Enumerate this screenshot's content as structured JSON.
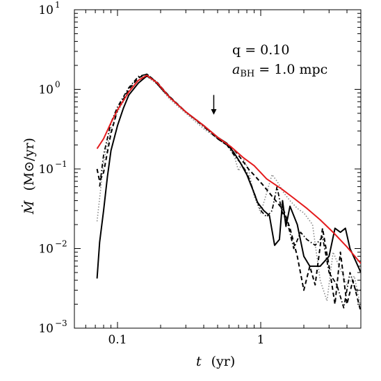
{
  "chart_data": {
    "type": "line",
    "title": "",
    "xlabel": {
      "symbol": "t",
      "unit": "(yr)"
    },
    "ylabel": {
      "symbol": "Ṁ",
      "unit": "(M⊙/yr)"
    },
    "xscale": "log",
    "yscale": "log",
    "xlim": [
      0.05,
      5.0
    ],
    "ylim": [
      0.001,
      10
    ],
    "x_tick_labels": [
      {
        "value": 0.1,
        "label": "0.1"
      },
      {
        "value": 1,
        "label": "1"
      }
    ],
    "y_tick_labels": [
      {
        "value": 0.001,
        "base": "10",
        "exp": "−3"
      },
      {
        "value": 0.01,
        "base": "10",
        "exp": "−2"
      },
      {
        "value": 0.1,
        "base": "10",
        "exp": "−1"
      },
      {
        "value": 1,
        "base": "10",
        "exp": "0"
      },
      {
        "value": 10,
        "base": "10",
        "exp": "1"
      }
    ],
    "annotations": {
      "q": "q = 0.10",
      "a_bh": "a",
      "a_bh_sub": "BH",
      "a_bh_value": " = 1.0 mpc"
    },
    "arrow_marker": {
      "x": 0.47,
      "y_top": 0.85,
      "y_bottom": 0.48
    },
    "series": [
      {
        "style": "red-solid",
        "color": "#e41a1c",
        "x": [
          0.072,
          0.08,
          0.09,
          0.1,
          0.12,
          0.14,
          0.16,
          0.19,
          0.23,
          0.3,
          0.4,
          0.5,
          0.62,
          0.75,
          0.9,
          1.1,
          1.4,
          1.7,
          2.1,
          2.6,
          3.2,
          4.0,
          5.0
        ],
        "y": [
          0.18,
          0.24,
          0.38,
          0.55,
          0.93,
          1.3,
          1.5,
          1.2,
          0.8,
          0.52,
          0.35,
          0.25,
          0.19,
          0.14,
          0.11,
          0.075,
          0.056,
          0.043,
          0.032,
          0.023,
          0.016,
          0.0105,
          0.0065
        ]
      },
      {
        "style": "black-solid",
        "color": "#000000",
        "x": [
          0.072,
          0.075,
          0.08,
          0.085,
          0.09,
          0.1,
          0.11,
          0.12,
          0.14,
          0.16,
          0.18,
          0.21,
          0.25,
          0.3,
          0.4,
          0.5,
          0.58,
          0.65,
          0.72,
          0.8,
          0.88,
          0.95,
          1.05,
          1.15,
          1.25,
          1.35,
          1.42,
          1.5,
          1.6,
          1.8,
          2.0,
          2.2,
          2.6,
          3.0,
          3.3,
          3.6,
          3.9,
          4.2,
          4.6,
          5.0
        ],
        "y": [
          0.0042,
          0.012,
          0.03,
          0.08,
          0.17,
          0.35,
          0.58,
          0.85,
          1.2,
          1.47,
          1.3,
          0.95,
          0.7,
          0.52,
          0.35,
          0.25,
          0.21,
          0.16,
          0.12,
          0.085,
          0.055,
          0.038,
          0.03,
          0.026,
          0.011,
          0.013,
          0.04,
          0.019,
          0.034,
          0.02,
          0.008,
          0.006,
          0.006,
          0.008,
          0.018,
          0.016,
          0.018,
          0.01,
          0.007,
          0.005
        ]
      },
      {
        "style": "black-dashed",
        "color": "#000000",
        "x": [
          0.072,
          0.075,
          0.08,
          0.09,
          0.1,
          0.12,
          0.14,
          0.16,
          0.19,
          0.23,
          0.3,
          0.4,
          0.5,
          0.58,
          0.66,
          0.74,
          0.82,
          0.92,
          1.02,
          1.15,
          1.3,
          1.45,
          1.6,
          1.8,
          2.0,
          2.2,
          2.4,
          2.7,
          3.0,
          3.3,
          3.6,
          4.0,
          4.4,
          5.0
        ],
        "y": [
          0.1,
          0.07,
          0.09,
          0.28,
          0.55,
          1.0,
          1.4,
          1.55,
          1.2,
          0.82,
          0.52,
          0.35,
          0.24,
          0.2,
          0.17,
          0.13,
          0.1,
          0.08,
          0.065,
          0.05,
          0.038,
          0.03,
          0.018,
          0.008,
          0.003,
          0.006,
          0.0035,
          0.018,
          0.006,
          0.002,
          0.009,
          0.002,
          0.004,
          0.0016
        ]
      },
      {
        "style": "black-dotted",
        "color": "#888888",
        "x": [
          0.072,
          0.08,
          0.09,
          0.1,
          0.12,
          0.14,
          0.16,
          0.19,
          0.23,
          0.3,
          0.4,
          0.5,
          0.58,
          0.65,
          0.7,
          0.76,
          0.82,
          0.9,
          1.0,
          1.1,
          1.2,
          1.3,
          1.45,
          1.6,
          1.8,
          2.0,
          2.3,
          2.6,
          2.9,
          3.2,
          3.6,
          4.0,
          4.5,
          5.0
        ],
        "y": [
          0.022,
          0.12,
          0.32,
          0.52,
          0.92,
          1.3,
          1.45,
          1.15,
          0.76,
          0.5,
          0.32,
          0.24,
          0.21,
          0.15,
          0.095,
          0.13,
          0.1,
          0.045,
          0.028,
          0.05,
          0.085,
          0.07,
          0.05,
          0.04,
          0.032,
          0.028,
          0.02,
          0.004,
          0.0022,
          0.009,
          0.0055,
          0.0035,
          0.0045,
          0.0018
        ]
      },
      {
        "style": "black-dashdot",
        "color": "#000000",
        "x": [
          0.075,
          0.08,
          0.09,
          0.1,
          0.12,
          0.14,
          0.16,
          0.19,
          0.23,
          0.3,
          0.4,
          0.5,
          0.58,
          0.65,
          0.72,
          0.8,
          0.9,
          1.0,
          1.1,
          1.2,
          1.3,
          1.4,
          1.55,
          1.7,
          1.9,
          2.1,
          2.4,
          2.7,
          3.0,
          3.4,
          3.8,
          4.2,
          4.6,
          5.0
        ],
        "y": [
          0.06,
          0.15,
          0.38,
          0.6,
          1.05,
          1.45,
          1.55,
          1.22,
          0.8,
          0.52,
          0.34,
          0.24,
          0.2,
          0.15,
          0.12,
          0.09,
          0.05,
          0.03,
          0.025,
          0.03,
          0.06,
          0.03,
          0.02,
          0.01,
          0.016,
          0.013,
          0.011,
          0.014,
          0.005,
          0.0035,
          0.0018,
          0.005,
          0.003,
          0.003
        ]
      }
    ]
  }
}
